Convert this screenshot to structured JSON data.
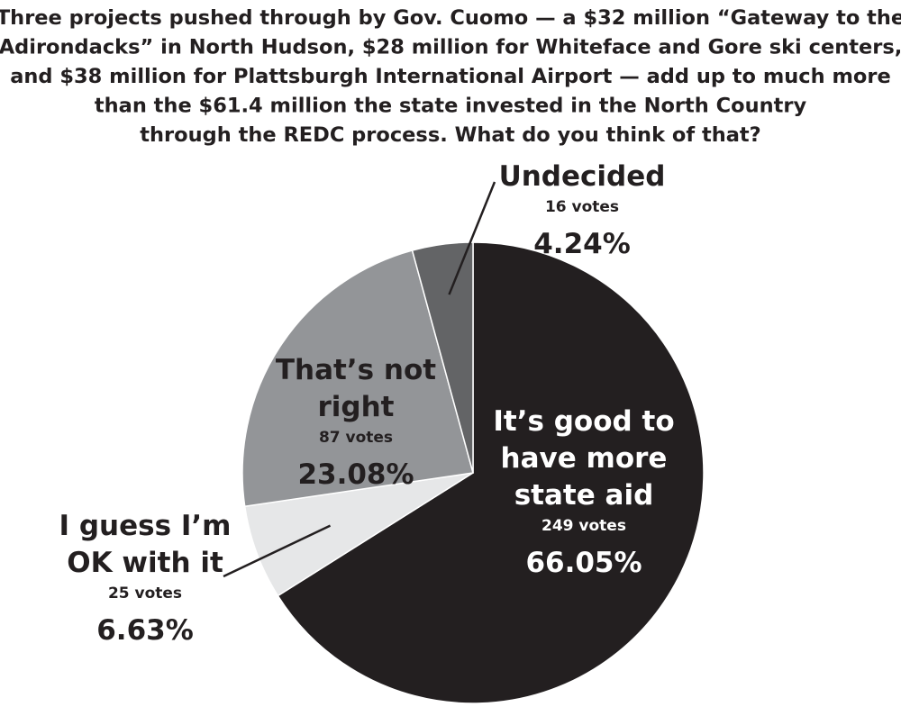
{
  "chart_data": {
    "type": "pie",
    "title": "Three projects pushed through by Gov. Cuomo — a $32 million “Gateway to the Adirondacks” in North Hudson, $28 million for Whiteface and Gore ski centers, and $38 million for Plattsburgh International Airport — add up to much more than the $61.4 million the state invested in the North Country through the REDC process. What do you think of that?",
    "title_lines": [
      "Three projects pushed through by Gov. Cuomo — a $32 million “Gateway to the",
      "Adirondacks” in North Hudson, $28 million for Whiteface and Gore ski centers,",
      "and $38 million for Plattsburgh International Airport — add up to much more",
      "than the $61.4 million the state invested in the North Country",
      "through the REDC process. What do you think of that?"
    ],
    "slices": [
      {
        "key": "good",
        "label": "It’s good to have more state aid",
        "label_lines": [
          "It’s good to",
          "have more",
          "state aid"
        ],
        "votes": 249,
        "votes_text": "249 votes",
        "percent": 66.05,
        "percent_text": "66.05%",
        "color": "#231f20",
        "text_color": "#ffffff"
      },
      {
        "key": "ok",
        "label": "I guess I’m OK with it",
        "label_lines": [
          "I guess I’m",
          "OK with it"
        ],
        "votes": 25,
        "votes_text": "25 votes",
        "percent": 6.63,
        "percent_text": "6.63%",
        "color": "#e6e7e8",
        "text_color": "#231f20"
      },
      {
        "key": "notright",
        "label": "That’s not right",
        "label_lines": [
          "That’s not",
          "right"
        ],
        "votes": 87,
        "votes_text": "87 votes",
        "percent": 23.08,
        "percent_text": "23.08%",
        "color": "#939598",
        "text_color": "#231f20"
      },
      {
        "key": "undecided",
        "label": "Undecided",
        "label_lines": [
          "Undecided"
        ],
        "votes": 16,
        "votes_text": "16 votes",
        "percent": 4.24,
        "percent_text": "4.24%",
        "color": "#636466",
        "text_color": "#231f20"
      }
    ],
    "start_angle_deg": 0,
    "direction": "clockwise",
    "slice_outline_color": "#ffffff",
    "leader_line_color": "#231f20"
  }
}
